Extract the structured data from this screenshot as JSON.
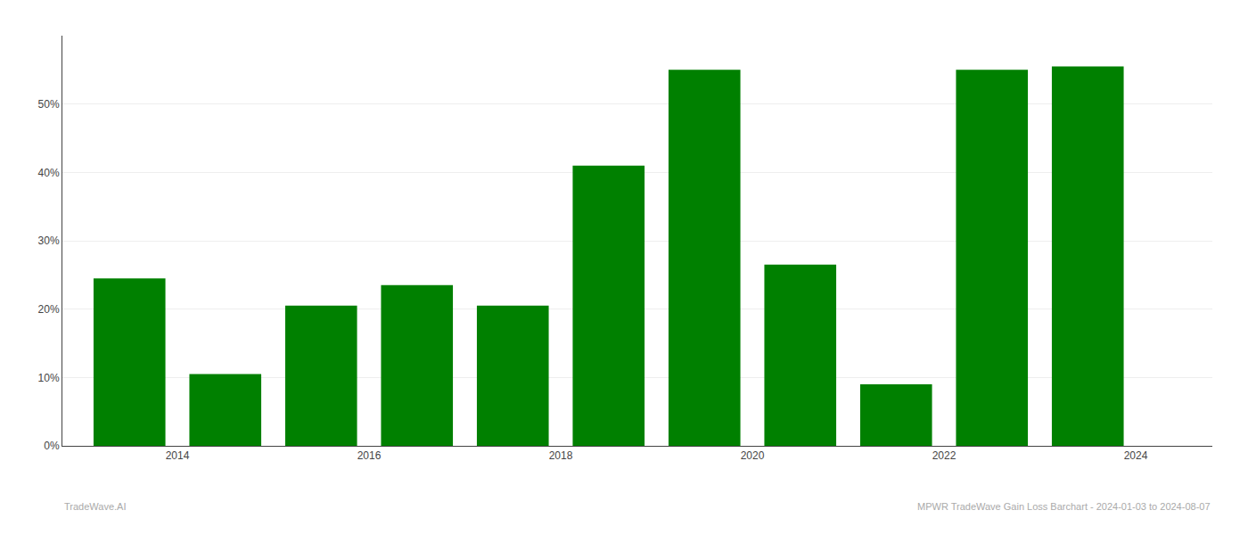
{
  "chart_data": {
    "type": "bar",
    "x": [
      2013.5,
      2014.5,
      2015.5,
      2016.5,
      2017.5,
      2018.5,
      2019.5,
      2020.5,
      2021.5,
      2022.5,
      2023.5
    ],
    "values": [
      0.245,
      0.105,
      0.205,
      0.235,
      0.205,
      0.41,
      0.55,
      0.265,
      0.09,
      0.55,
      0.555
    ],
    "color": "#008000",
    "xlim": [
      2012.8,
      2024.8
    ],
    "xticks": [
      2014,
      2016,
      2018,
      2020,
      2022,
      2024
    ],
    "ylim": [
      0,
      0.6
    ],
    "yticks": [
      {
        "value": 0.0,
        "label": "0%"
      },
      {
        "value": 0.1,
        "label": "10%"
      },
      {
        "value": 0.2,
        "label": "20%"
      },
      {
        "value": 0.3,
        "label": "30%"
      },
      {
        "value": 0.4,
        "label": "40%"
      },
      {
        "value": 0.5,
        "label": "50%"
      }
    ],
    "grid": true,
    "annotations": [
      "TradeWave.AI",
      "MPWR TradeWave Gain Loss Barchart - 2024-01-03 to 2024-08-07"
    ]
  }
}
